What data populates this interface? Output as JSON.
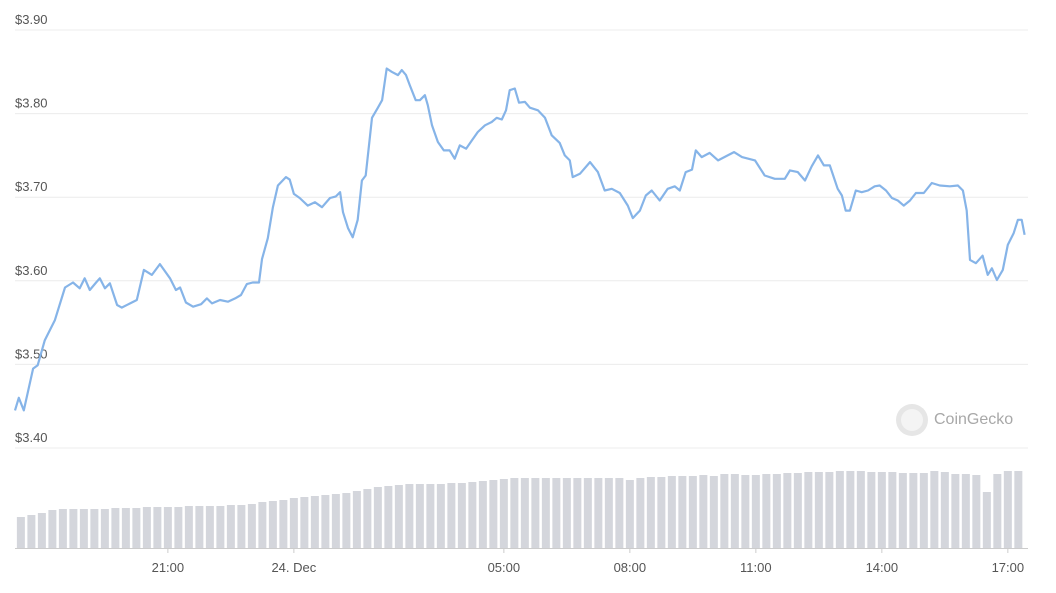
{
  "chart_data": [
    {
      "type": "line",
      "color": "#86b4e8",
      "watermark": "CoinGecko",
      "xlim": [
        -6.64,
        17.48
      ],
      "ylim": [
        3.4,
        3.9
      ],
      "yticks": [
        {
          "value": 3.4,
          "label": "$3.40"
        },
        {
          "value": 3.5,
          "label": "$3.50"
        },
        {
          "value": 3.6,
          "label": "$3.60"
        },
        {
          "value": 3.7,
          "label": "$3.70"
        },
        {
          "value": 3.8,
          "label": "$3.80"
        },
        {
          "value": 3.9,
          "label": "$3.90"
        }
      ],
      "grid": true,
      "x": [
        -6.64,
        -6.55,
        -6.43,
        -6.21,
        -6.1,
        -5.93,
        -5.69,
        -5.45,
        -5.26,
        -5.1,
        -4.98,
        -4.86,
        -4.71,
        -4.62,
        -4.5,
        -4.38,
        -4.21,
        -4.1,
        -3.9,
        -3.74,
        -3.57,
        -3.38,
        -3.19,
        -2.95,
        -2.81,
        -2.71,
        -2.57,
        -2.4,
        -2.21,
        -2.07,
        -1.95,
        -1.76,
        -1.57,
        -1.4,
        -1.26,
        -1.12,
        -0.98,
        -0.83,
        -0.76,
        -0.62,
        -0.5,
        -0.38,
        -0.19,
        -0.1,
        0,
        0.14,
        0.33,
        0.5,
        0.67,
        0.86,
        1.0,
        1.1,
        1.17,
        1.29,
        1.4,
        1.52,
        1.62,
        1.71,
        1.86,
        2.0,
        2.1,
        2.21,
        2.33,
        2.48,
        2.57,
        2.67,
        2.76,
        2.9,
        3.0,
        3.12,
        3.19,
        3.29,
        3.43,
        3.57,
        3.71,
        3.83,
        3.95,
        4.1,
        4.24,
        4.38,
        4.55,
        4.71,
        4.83,
        4.95,
        5.05,
        5.14,
        5.26,
        5.36,
        5.5,
        5.62,
        5.81,
        5.98,
        6.14,
        6.33,
        6.45,
        6.57,
        6.64,
        6.81,
        7.05,
        7.24,
        7.4,
        7.57,
        7.76,
        7.95,
        8.07,
        8.24,
        8.38,
        8.52,
        8.71,
        8.9,
        9.07,
        9.19,
        9.33,
        9.48,
        9.57,
        9.71,
        9.9,
        10.1,
        10.33,
        10.48,
        10.67,
        10.98,
        11.21,
        11.45,
        11.69,
        11.81,
        12.0,
        12.17,
        12.33,
        12.48,
        12.62,
        12.76,
        12.95,
        13.05,
        13.14,
        13.24,
        13.38,
        13.52,
        13.67,
        13.83,
        13.95,
        14.1,
        14.24,
        14.38,
        14.52,
        14.67,
        14.81,
        15.0,
        15.19,
        15.38,
        15.62,
        15.81,
        15.93,
        16.02,
        16.1,
        16.24,
        16.4,
        16.52,
        16.62,
        16.74,
        16.88,
        17.0,
        17.14,
        17.24,
        17.33,
        17.4
      ],
      "values": [
        3.445,
        3.46,
        3.445,
        3.495,
        3.499,
        3.529,
        3.553,
        3.592,
        3.598,
        3.591,
        3.603,
        3.589,
        3.598,
        3.603,
        3.591,
        3.597,
        3.571,
        3.568,
        3.573,
        3.577,
        3.613,
        3.607,
        3.62,
        3.603,
        3.589,
        3.592,
        3.574,
        3.569,
        3.572,
        3.579,
        3.573,
        3.577,
        3.575,
        3.579,
        3.583,
        3.596,
        3.598,
        3.598,
        3.626,
        3.651,
        3.688,
        3.714,
        3.724,
        3.721,
        3.704,
        3.699,
        3.69,
        3.694,
        3.688,
        3.699,
        3.701,
        3.706,
        3.682,
        3.663,
        3.652,
        3.673,
        3.72,
        3.726,
        3.795,
        3.807,
        3.816,
        3.854,
        3.85,
        3.846,
        3.852,
        3.846,
        3.834,
        3.816,
        3.816,
        3.822,
        3.81,
        3.786,
        3.766,
        3.756,
        3.756,
        3.746,
        3.762,
        3.758,
        3.768,
        3.778,
        3.786,
        3.79,
        3.795,
        3.793,
        3.804,
        3.828,
        3.83,
        3.813,
        3.814,
        3.807,
        3.804,
        3.795,
        3.774,
        3.765,
        3.75,
        3.744,
        3.724,
        3.728,
        3.742,
        3.73,
        3.708,
        3.71,
        3.705,
        3.69,
        3.675,
        3.684,
        3.702,
        3.708,
        3.696,
        3.71,
        3.713,
        3.708,
        3.73,
        3.733,
        3.756,
        3.748,
        3.753,
        3.744,
        3.75,
        3.754,
        3.748,
        3.744,
        3.726,
        3.722,
        3.722,
        3.732,
        3.73,
        3.72,
        3.737,
        3.75,
        3.738,
        3.738,
        3.71,
        3.702,
        3.684,
        3.684,
        3.708,
        3.706,
        3.708,
        3.713,
        3.714,
        3.708,
        3.699,
        3.696,
        3.69,
        3.696,
        3.705,
        3.705,
        3.717,
        3.714,
        3.713,
        3.714,
        3.708,
        3.684,
        3.625,
        3.621,
        3.63,
        3.607,
        3.615,
        3.601,
        3.613,
        3.643,
        3.657,
        3.673,
        3.673,
        3.655
      ]
    },
    {
      "type": "bar",
      "color": "#d4d6dc",
      "xlim": [
        -6.64,
        17.48
      ],
      "ylim": [
        0,
        80
      ],
      "xticks": [
        {
          "value": -3,
          "label": "21:00"
        },
        {
          "value": 0,
          "label": "24. Dec"
        },
        {
          "value": 5,
          "label": "05:00"
        },
        {
          "value": 8,
          "label": "08:00"
        },
        {
          "value": 11,
          "label": "11:00"
        },
        {
          "value": 14,
          "label": "14:00"
        },
        {
          "value": 17,
          "label": "17:00"
        }
      ],
      "x": [
        -6.5,
        -6.25,
        -6,
        -5.75,
        -5.5,
        -5.25,
        -5,
        -4.75,
        -4.5,
        -4.25,
        -4,
        -3.75,
        -3.5,
        -3.25,
        -3,
        -2.75,
        -2.5,
        -2.25,
        -2,
        -1.75,
        -1.5,
        -1.25,
        -1,
        -0.75,
        -0.5,
        -0.25,
        0,
        0.25,
        0.5,
        0.75,
        1,
        1.25,
        1.5,
        1.75,
        2,
        2.25,
        2.5,
        2.75,
        3,
        3.25,
        3.5,
        3.75,
        4,
        4.25,
        4.5,
        4.75,
        5,
        5.25,
        5.5,
        5.75,
        6,
        6.25,
        6.5,
        6.75,
        7,
        7.25,
        7.5,
        7.75,
        8,
        8.25,
        8.5,
        8.75,
        9,
        9.25,
        9.5,
        9.75,
        10,
        10.25,
        10.5,
        10.75,
        11,
        11.25,
        11.5,
        11.75,
        12,
        12.25,
        12.5,
        12.75,
        13,
        13.25,
        13.5,
        13.75,
        14,
        14.25,
        14.5,
        14.75,
        15,
        15.25,
        15.5,
        15.75,
        16,
        16.25,
        16.5,
        16.75,
        17,
        17.25
      ],
      "values": [
        31,
        33,
        35,
        38,
        39,
        39,
        39,
        39,
        39,
        40,
        40,
        40,
        41,
        41,
        41,
        41,
        42,
        42,
        42,
        42,
        43,
        43,
        44,
        46,
        47,
        48,
        50,
        51,
        52,
        53,
        54,
        55,
        57,
        59,
        61,
        62,
        63,
        64,
        64,
        64,
        64,
        65,
        65,
        66,
        67,
        68,
        69,
        70,
        70,
        70,
        70,
        70,
        70,
        70,
        70,
        70,
        70,
        70,
        68,
        70,
        71,
        71,
        72,
        72,
        72,
        73,
        72,
        74,
        74,
        73,
        73,
        74,
        74,
        75,
        75,
        76,
        76,
        76,
        77,
        77,
        77,
        76,
        76,
        76,
        75,
        75,
        75,
        77,
        76,
        74,
        74,
        73,
        56,
        74,
        77,
        77
      ]
    }
  ]
}
